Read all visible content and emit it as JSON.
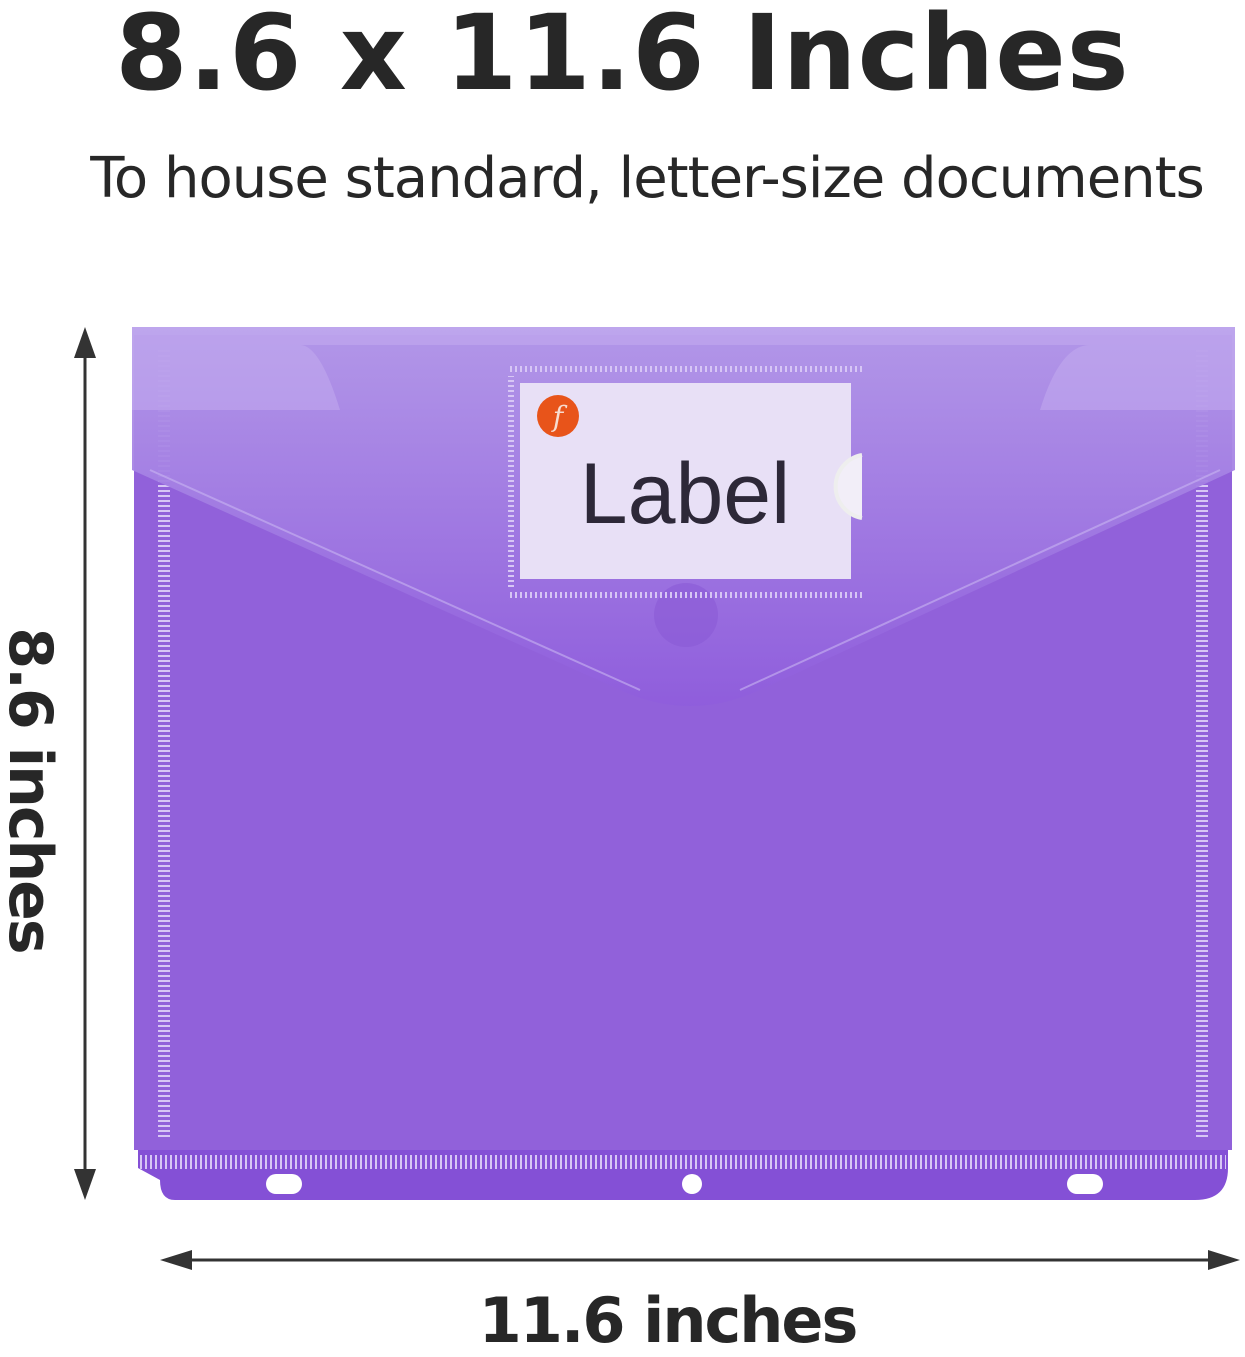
{
  "heading": {
    "title": "8.6 x 11.6 Inches",
    "subtitle": "To house standard, letter-size documents"
  },
  "dimensions": {
    "height_label": "8.6 inches",
    "width_label": "11.6 inches"
  },
  "product": {
    "label_card_text": "Label",
    "logo_letter": "f",
    "colors": {
      "envelope": "#9060dc",
      "flap": "#a98ae6",
      "label_card": "#e8e0f6",
      "logo": "#e8541a",
      "text": "#272727"
    }
  }
}
